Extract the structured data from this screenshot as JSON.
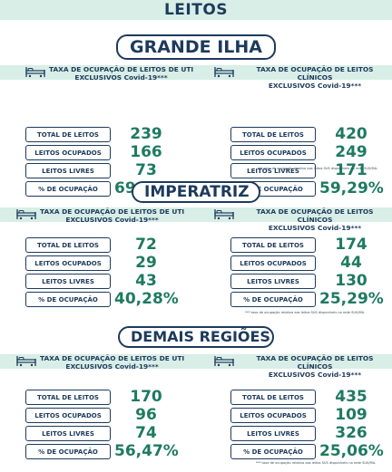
{
  "page_title": "LEITOS",
  "sections": [
    {
      "region": "GRANDE ILHA",
      "uti": {
        "header_line1": "TAXA DE OCUPAÇÃO DE LEITOS DE UTI",
        "header_line2": "EXCLUSIVOS Covid-19***",
        "rows": [
          {
            "label": "TOTAL DE LEITOS",
            "value": "239"
          },
          {
            "label": "LEITOS OCUPADOS",
            "value": "166"
          },
          {
            "label": "LEITOS LIVRES",
            "value": "73"
          },
          {
            "label": "% DE OCUPAÇÃO",
            "value": "69,46%"
          }
        ]
      },
      "clinicos": {
        "header_line1": "TAXA DE OCUPAÇÃO DE LEITOS CLÍNICOS",
        "header_line2": "EXCLUSIVOS Covid-19***",
        "rows": [
          {
            "label": "TOTAL DE LEITOS",
            "value": "420"
          },
          {
            "label": "LEITOS OCUPADOS",
            "value": "249"
          },
          {
            "label": "LEITOS LIVRES",
            "value": "171"
          },
          {
            "label": "% DE OCUPAÇÃO",
            "value": "59,29%"
          }
        ]
      },
      "footnote": "*** taxa de ocupação relativa aos leitos SUS disponíveis na rede SUS/MA."
    },
    {
      "region": "IMPERATRIZ",
      "uti": {
        "header_line1": "TAXA DE OCUPAÇÃO DE LEITOS DE UTI",
        "header_line2": "EXCLUSIVOS Covid-19***",
        "rows": [
          {
            "label": "TOTAL DE LEITOS",
            "value": "72"
          },
          {
            "label": "LEITOS OCUPADOS",
            "value": "29"
          },
          {
            "label": "LEITOS LIVRES",
            "value": "43"
          },
          {
            "label": "% DE OCUPAÇÃO",
            "value": "40,28%"
          }
        ]
      },
      "clinicos": {
        "header_line1": "TAXA DE OCUPAÇÃO DE LEITOS CLÍNICOS",
        "header_line2": "EXCLUSIVOS Covid-19***",
        "rows": [
          {
            "label": "TOTAL DE LEITOS",
            "value": "174"
          },
          {
            "label": "LEITOS OCUPADOS",
            "value": "44"
          },
          {
            "label": "LEITOS LIVRES",
            "value": "130"
          },
          {
            "label": "% DE OCUPAÇÃO",
            "value": "25,29%"
          }
        ]
      },
      "footnote": "*** taxa de ocupação relativa aos leitos SUS disponíveis na rede SUS/MA."
    },
    {
      "region": "DEMAIS REGIÕES",
      "uti": {
        "header_line1": "TAXA DE OCUPAÇÃO DE LEITOS DE UTI",
        "header_line2": "EXCLUSIVOS Covid-19***",
        "rows": [
          {
            "label": "TOTAL DE LEITOS",
            "value": "170"
          },
          {
            "label": "LEITOS OCUPADOS",
            "value": "96"
          },
          {
            "label": "LEITOS LIVRES",
            "value": "74"
          },
          {
            "label": "% DE OCUPAÇÃO",
            "value": "56,47%"
          }
        ]
      },
      "clinicos": {
        "header_line1": "TAXA DE OCUPAÇÃO DE LEITOS CLÍNICOS",
        "header_line2": "EXCLUSIVOS Covid-19***",
        "rows": [
          {
            "label": "TOTAL DE LEITOS",
            "value": "435"
          },
          {
            "label": "LEITOS OCUPADOS",
            "value": "109"
          },
          {
            "label": "LEITOS LIVRES",
            "value": "326"
          },
          {
            "label": "% DE OCUPAÇÃO",
            "value": "25,06%"
          }
        ]
      },
      "footnote": "*** taxa de ocupação relativa aos leitos SUS disponíveis na rede SUS/MA."
    }
  ],
  "colors": {
    "navy": "#1d3a5c",
    "value_green": "#1e7a60",
    "band_mint": "#d8eee6"
  },
  "icons": {
    "uti": "hospital-bed-icon",
    "clinicos": "hospital-bed-icon"
  }
}
